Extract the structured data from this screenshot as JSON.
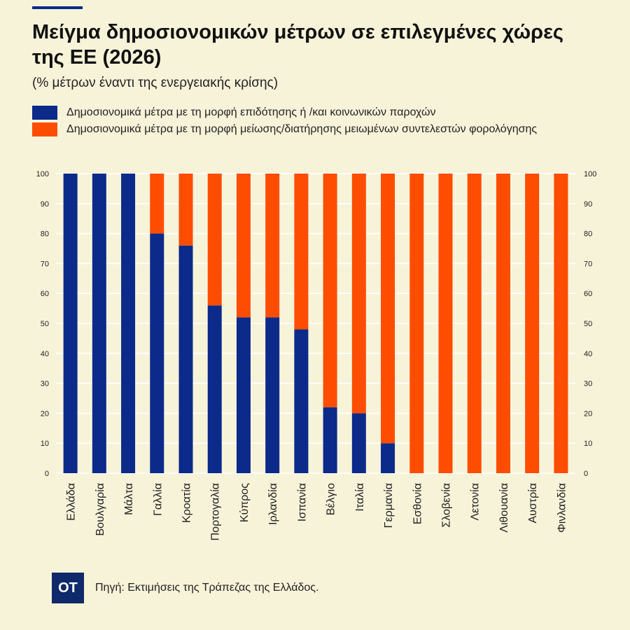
{
  "header": {
    "title": "Μείγμα δημοσιονομικών μέτρων σε επιλεγμένες χώρες της ΕΕ (2026)",
    "subtitle": "(% μέτρων έναντι της ενεργειακής κρίσης)"
  },
  "colors": {
    "subsidy": "#0b2a8a",
    "tax": "#ff4d00",
    "grid": "#ffffff",
    "background": "#f7f3d9"
  },
  "legend": [
    {
      "label": "Δημοσιονομικά μέτρα με τη μορφή επιδότησης ή /και κοινωνικών παροχών",
      "color": "#0b2a8a"
    },
    {
      "label": "Δημοσιονομικά μέτρα με τη μορφή μείωσης/διατήρησης μειωμένων συντελεστών φορολόγησης",
      "color": "#ff4d00"
    }
  ],
  "chart_data": {
    "type": "bar",
    "stacked": true,
    "categories": [
      "Ελλάδα",
      "Βουλγαρία",
      "Μάλτα",
      "Γαλλία",
      "Κροατία",
      "Πορτογαλία",
      "Κύπρος",
      "Ιρλανδία",
      "Ισπανία",
      "Βέλγιο",
      "Ιταλία",
      "Γερμανία",
      "Εσθονία",
      "Σλοβενία",
      "Λετονία",
      "Λιθουανία",
      "Αυστρία",
      "Φινλανδία"
    ],
    "series": [
      {
        "name": "Δημοσιονομικά μέτρα με τη μορφή επιδότησης ή /και κοινωνικών παροχών",
        "color": "#0b2a8a",
        "values": [
          100,
          100,
          100,
          80,
          76,
          56,
          52,
          52,
          48,
          22,
          20,
          10,
          0,
          0,
          0,
          0,
          0,
          0
        ]
      },
      {
        "name": "Δημοσιονομικά μέτρα με τη μορφή μείωσης/διατήρησης μειωμένων συντελεστών φορολόγησης",
        "color": "#ff4d00",
        "values": [
          0,
          0,
          0,
          20,
          24,
          44,
          48,
          48,
          52,
          78,
          80,
          90,
          100,
          100,
          100,
          100,
          100,
          100
        ]
      }
    ],
    "yticks": [
      "0",
      "10",
      "20",
      "30",
      "40",
      "50",
      "60",
      "70",
      "80",
      "90",
      "100"
    ],
    "ylim": [
      0,
      100
    ],
    "grid": true,
    "axes": "left-and-right"
  },
  "footer": {
    "logo_text": "OT",
    "source": "Πηγή: Εκτιμήσεις της Τράπεζας της Ελλάδος."
  }
}
